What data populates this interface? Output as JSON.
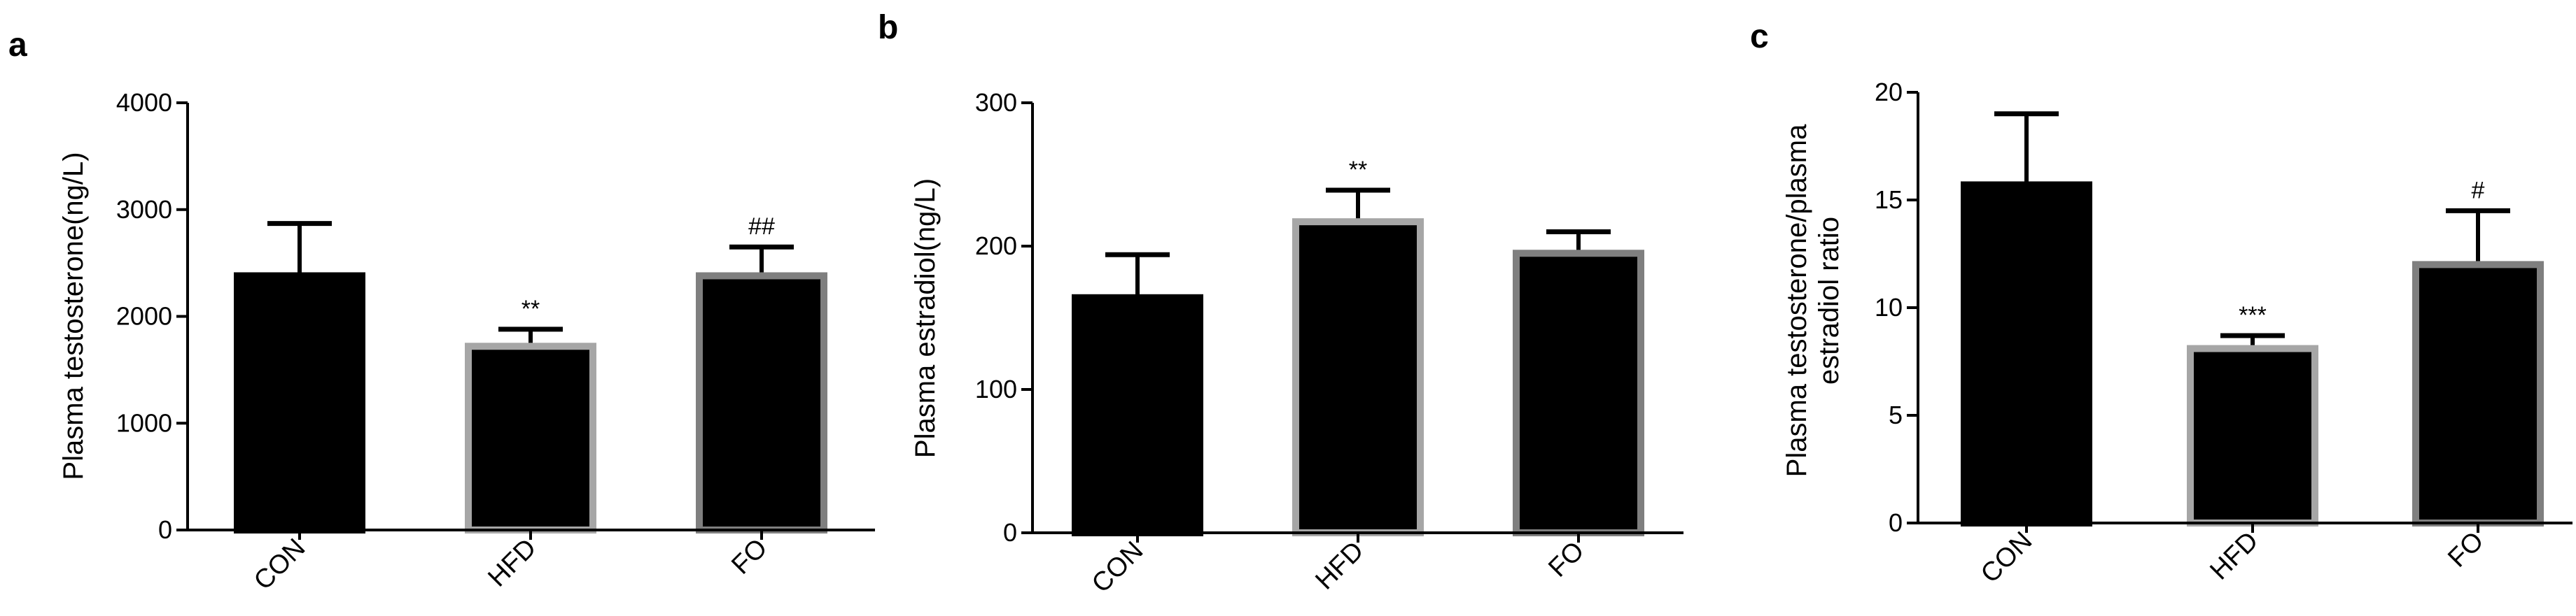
{
  "chart_data": [
    {
      "panel": "a",
      "type": "bar",
      "categories": [
        "CON",
        "HFD",
        "FO"
      ],
      "values": [
        2380,
        1720,
        2380
      ],
      "errors": [
        490,
        160,
        270
      ],
      "significance": [
        "",
        "**",
        "##"
      ],
      "ylabel": "Plasma testosterone(ng/L)",
      "ylim": [
        0,
        4000
      ],
      "yticks": [
        "0",
        "1000",
        "2000",
        "3000",
        "4000"
      ],
      "border_colors": [
        "#000000",
        "#a6a6a6",
        "#7f7f7f"
      ]
    },
    {
      "panel": "b",
      "type": "bar",
      "categories": [
        "CON",
        "HFD",
        "FO"
      ],
      "values": [
        164,
        217,
        195
      ],
      "errors": [
        30,
        22,
        15
      ],
      "significance": [
        "",
        "**",
        ""
      ],
      "ylabel": "Plasma estradiol(ng/L)",
      "ylim": [
        0,
        300
      ],
      "yticks": [
        "0",
        "100",
        "200",
        "300"
      ],
      "border_colors": [
        "#000000",
        "#a6a6a6",
        "#7f7f7f"
      ]
    },
    {
      "panel": "c",
      "type": "bar",
      "categories": [
        "CON",
        "HFD",
        "FO"
      ],
      "values": [
        15.7,
        8.1,
        12.0
      ],
      "errors": [
        3.3,
        0.6,
        2.5
      ],
      "significance": [
        "",
        "***",
        "#"
      ],
      "ylabel_lines": [
        "Plasma testosterone/plasma",
        "estradiol ratio"
      ],
      "ylim": [
        0,
        20
      ],
      "yticks": [
        "0",
        "5",
        "10",
        "15",
        "20"
      ],
      "border_colors": [
        "#000000",
        "#a6a6a6",
        "#7f7f7f"
      ]
    }
  ]
}
